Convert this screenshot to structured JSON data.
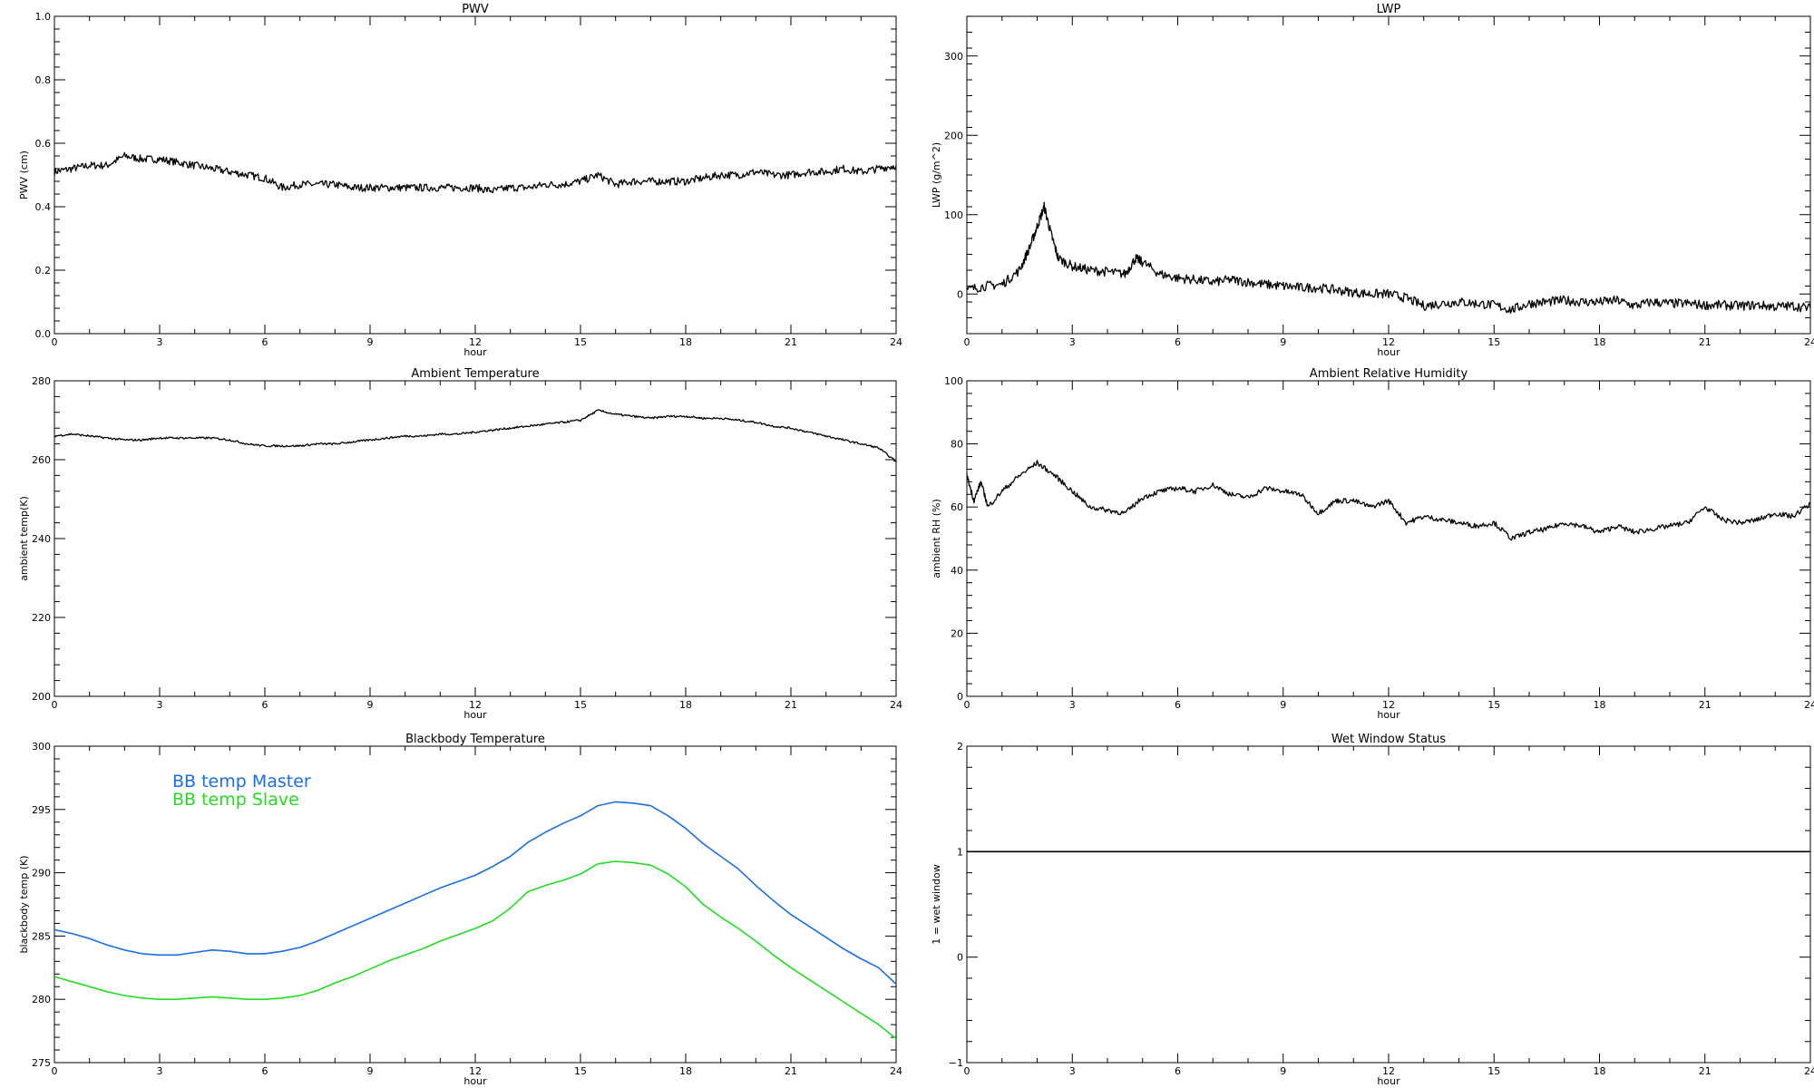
{
  "chart_data": [
    {
      "id": "pwv",
      "type": "line",
      "title": "PWV",
      "xlabel": "hour",
      "ylabel": "PWV (cm)",
      "xlim": [
        0,
        24
      ],
      "ylim": [
        0,
        1.0
      ],
      "xticks": [
        0,
        3,
        6,
        9,
        12,
        15,
        18,
        21,
        24
      ],
      "yticks": [
        0.0,
        0.2,
        0.4,
        0.6,
        0.8,
        1.0
      ],
      "ytick_labels": [
        "0.0",
        "0.2",
        "0.4",
        "0.6",
        "0.8",
        "1.0"
      ],
      "series": [
        {
          "color": "#000000",
          "x": [
            0,
            0.5,
            1,
            1.5,
            2,
            2.5,
            3,
            3.5,
            4,
            4.5,
            5,
            5.5,
            6,
            6.5,
            7,
            7.5,
            8,
            8.5,
            9,
            9.5,
            10,
            10.5,
            11,
            11.5,
            12,
            12.5,
            13,
            13.5,
            14,
            14.5,
            15,
            15.5,
            16,
            16.5,
            17,
            17.5,
            18,
            18.5,
            19,
            19.5,
            20,
            20.5,
            21,
            21.5,
            22,
            22.5,
            23,
            23.5,
            24
          ],
          "y": [
            0.51,
            0.52,
            0.53,
            0.53,
            0.56,
            0.55,
            0.55,
            0.54,
            0.53,
            0.52,
            0.51,
            0.5,
            0.49,
            0.46,
            0.47,
            0.47,
            0.47,
            0.46,
            0.46,
            0.46,
            0.46,
            0.46,
            0.46,
            0.46,
            0.46,
            0.45,
            0.46,
            0.46,
            0.47,
            0.47,
            0.48,
            0.5,
            0.47,
            0.48,
            0.48,
            0.48,
            0.48,
            0.49,
            0.5,
            0.5,
            0.51,
            0.5,
            0.5,
            0.51,
            0.51,
            0.52,
            0.51,
            0.52,
            0.53
          ]
        }
      ]
    },
    {
      "id": "lwp",
      "type": "line",
      "title": "LWP",
      "xlabel": "hour",
      "ylabel": "LWP (g/m^2)",
      "xlim": [
        0,
        24
      ],
      "ylim": [
        -50,
        350
      ],
      "xticks": [
        0,
        3,
        6,
        9,
        12,
        15,
        18,
        21,
        24
      ],
      "yticks": [
        0,
        100,
        200,
        300
      ],
      "ytick_labels": [
        "0",
        "100",
        "200",
        "300"
      ],
      "series": [
        {
          "color": "#000000",
          "x": [
            0,
            0.5,
            1,
            1.5,
            1.8,
            2,
            2.2,
            2.4,
            2.6,
            3,
            3.5,
            4,
            4.5,
            4.8,
            5,
            5.5,
            6,
            6.5,
            7,
            7.5,
            8,
            8.5,
            9,
            9.5,
            10,
            10.5,
            11,
            11.5,
            12,
            12.5,
            13,
            13.5,
            14,
            14.5,
            15,
            15.5,
            16,
            16.5,
            17,
            17.5,
            18,
            18.5,
            19,
            19.5,
            20,
            20.5,
            21,
            21.5,
            22,
            22.5,
            23,
            23.5,
            24
          ],
          "y": [
            5,
            10,
            12,
            30,
            60,
            85,
            110,
            75,
            45,
            35,
            30,
            28,
            25,
            45,
            40,
            25,
            20,
            18,
            15,
            18,
            15,
            12,
            10,
            8,
            8,
            5,
            2,
            0,
            0,
            -5,
            -15,
            -12,
            -10,
            -12,
            -14,
            -20,
            -12,
            -10,
            -8,
            -10,
            -10,
            -8,
            -15,
            -10,
            -12,
            -12,
            -14,
            -14,
            -15,
            -14,
            -16,
            -15,
            -18
          ]
        }
      ]
    },
    {
      "id": "ambient-temperature",
      "type": "line",
      "title": "Ambient Temperature",
      "xlabel": "hour",
      "ylabel": "ambient temp(K)",
      "xlim": [
        0,
        24
      ],
      "ylim": [
        200,
        280
      ],
      "xticks": [
        0,
        3,
        6,
        9,
        12,
        15,
        18,
        21,
        24
      ],
      "yticks": [
        200,
        220,
        240,
        260,
        280
      ],
      "ytick_labels": [
        "200",
        "220",
        "240",
        "260",
        "280"
      ],
      "series": [
        {
          "color": "#000000",
          "x": [
            0,
            0.5,
            1,
            1.5,
            2,
            2.5,
            3,
            3.5,
            4,
            4.5,
            5,
            5.5,
            6,
            6.5,
            7,
            7.5,
            8,
            8.5,
            9,
            9.5,
            10,
            10.5,
            11,
            11.5,
            12,
            12.5,
            13,
            13.5,
            14,
            14.5,
            15,
            15.5,
            16,
            16.5,
            17,
            17.5,
            18,
            18.5,
            19,
            19.5,
            20,
            20.5,
            21,
            21.5,
            22,
            22.5,
            23,
            23.5,
            24
          ],
          "y": [
            266,
            266.5,
            266,
            265.5,
            265,
            265,
            265.5,
            265.5,
            265.5,
            265.5,
            265,
            264,
            263.5,
            263.5,
            263.5,
            264,
            264,
            264.5,
            265,
            265.5,
            266,
            266,
            266.5,
            266.5,
            267,
            267.5,
            268,
            268.5,
            269,
            269.5,
            270,
            272.5,
            271.5,
            271,
            270.5,
            271,
            271,
            270.5,
            270.5,
            270,
            269.5,
            268.5,
            268,
            267,
            266,
            265,
            264,
            263,
            259.5
          ]
        }
      ]
    },
    {
      "id": "ambient-relative-humidity",
      "type": "line",
      "title": "Ambient Relative Humidity",
      "xlabel": "hour",
      "ylabel": "ambient RH (%)",
      "xlim": [
        0,
        24
      ],
      "ylim": [
        0,
        100
      ],
      "xticks": [
        0,
        3,
        6,
        9,
        12,
        15,
        18,
        21,
        24
      ],
      "yticks": [
        0,
        20,
        40,
        60,
        80,
        100
      ],
      "ytick_labels": [
        "0",
        "20",
        "40",
        "60",
        "80",
        "100"
      ],
      "series": [
        {
          "color": "#000000",
          "x": [
            0,
            0.2,
            0.4,
            0.6,
            1,
            1.5,
            2,
            2.5,
            3,
            3.5,
            4,
            4.5,
            5,
            5.5,
            6,
            6.5,
            7,
            7.5,
            8,
            8.5,
            9,
            9.5,
            10,
            10.5,
            11,
            11.5,
            12,
            12.5,
            13,
            13.5,
            14,
            14.5,
            15,
            15.5,
            16,
            16.5,
            17,
            17.5,
            18,
            18.5,
            19,
            19.5,
            20,
            20.5,
            21,
            21.5,
            22,
            22.5,
            23,
            23.5,
            24
          ],
          "y": [
            70,
            62,
            68,
            60,
            65,
            70,
            74,
            70,
            65,
            60,
            59,
            58,
            63,
            65,
            66,
            65,
            67,
            64,
            63,
            66,
            65,
            64,
            58,
            62,
            62,
            60,
            62,
            55,
            57,
            56,
            55,
            54,
            55,
            50,
            52,
            53,
            55,
            54,
            52,
            54,
            52,
            53,
            54,
            55,
            60,
            56,
            55,
            56,
            58,
            57,
            61
          ]
        }
      ]
    },
    {
      "id": "blackbody-temperature",
      "type": "line",
      "title": "Blackbody Temperature",
      "xlabel": "hour",
      "ylabel": "blackbody temp (K)",
      "xlim": [
        0,
        24
      ],
      "ylim": [
        275,
        300
      ],
      "xticks": [
        0,
        3,
        6,
        9,
        12,
        15,
        18,
        21,
        24
      ],
      "yticks": [
        275,
        280,
        285,
        290,
        295,
        300
      ],
      "ytick_labels": [
        "275",
        "280",
        "285",
        "290",
        "295",
        "300"
      ],
      "legend": "top-left",
      "series": [
        {
          "name": "BB temp Master",
          "color": "#1a6ee6",
          "x": [
            0,
            0.5,
            1,
            1.5,
            2,
            2.5,
            3,
            3.5,
            4,
            4.5,
            5,
            5.5,
            6,
            6.5,
            7,
            7.5,
            8,
            8.5,
            9,
            9.5,
            10,
            10.5,
            11,
            11.5,
            12,
            12.5,
            13,
            13.5,
            14,
            14.5,
            15,
            15.5,
            16,
            16.5,
            17,
            17.5,
            18,
            18.5,
            19,
            19.5,
            20,
            20.5,
            21,
            21.5,
            22,
            22.5,
            23,
            23.5,
            24
          ],
          "y": [
            285.5,
            285.2,
            284.8,
            284.3,
            283.9,
            283.6,
            283.5,
            283.5,
            283.7,
            283.9,
            283.8,
            283.6,
            283.6,
            283.8,
            284.1,
            284.6,
            285.2,
            285.8,
            286.4,
            287.0,
            287.6,
            288.2,
            288.8,
            289.3,
            289.8,
            290.5,
            291.3,
            292.4,
            293.2,
            293.9,
            294.5,
            295.3,
            295.6,
            295.5,
            295.3,
            294.5,
            293.5,
            292.3,
            291.3,
            290.3,
            289.0,
            287.8,
            286.7,
            285.8,
            284.9,
            284.0,
            283.2,
            282.5,
            281.2
          ]
        },
        {
          "name": "BB temp Slave",
          "color": "#22dd22",
          "x": [
            0,
            0.5,
            1,
            1.5,
            2,
            2.5,
            3,
            3.5,
            4,
            4.5,
            5,
            5.5,
            6,
            6.5,
            7,
            7.5,
            8,
            8.5,
            9,
            9.5,
            10,
            10.5,
            11,
            11.5,
            12,
            12.5,
            13,
            13.5,
            14,
            14.5,
            15,
            15.5,
            16,
            16.5,
            17,
            17.5,
            18,
            18.5,
            19,
            19.5,
            20,
            20.5,
            21,
            21.5,
            22,
            22.5,
            23,
            23.5,
            24
          ],
          "y": [
            281.8,
            281.4,
            281.0,
            280.6,
            280.3,
            280.1,
            280.0,
            280.0,
            280.1,
            280.2,
            280.1,
            280.0,
            280.0,
            280.1,
            280.3,
            280.7,
            281.3,
            281.8,
            282.4,
            283.0,
            283.5,
            284.0,
            284.6,
            285.1,
            285.6,
            286.2,
            287.2,
            288.5,
            289.0,
            289.4,
            289.9,
            290.7,
            290.9,
            290.8,
            290.6,
            289.9,
            288.9,
            287.5,
            286.5,
            285.6,
            284.6,
            283.5,
            282.5,
            281.6,
            280.7,
            279.8,
            278.9,
            278.0,
            276.9
          ]
        }
      ]
    },
    {
      "id": "wet-window-status",
      "type": "line",
      "title": "Wet Window Status",
      "xlabel": "hour",
      "ylabel": "1 = wet window",
      "xlim": [
        0,
        24
      ],
      "ylim": [
        -1,
        2
      ],
      "xticks": [
        0,
        3,
        6,
        9,
        12,
        15,
        18,
        21,
        24
      ],
      "yticks": [
        -1,
        0,
        1,
        2
      ],
      "ytick_labels": [
        "−1",
        "0",
        "1",
        "2"
      ],
      "series": [
        {
          "color": "#000000",
          "x": [
            0,
            24
          ],
          "y": [
            1,
            1
          ]
        }
      ]
    }
  ]
}
